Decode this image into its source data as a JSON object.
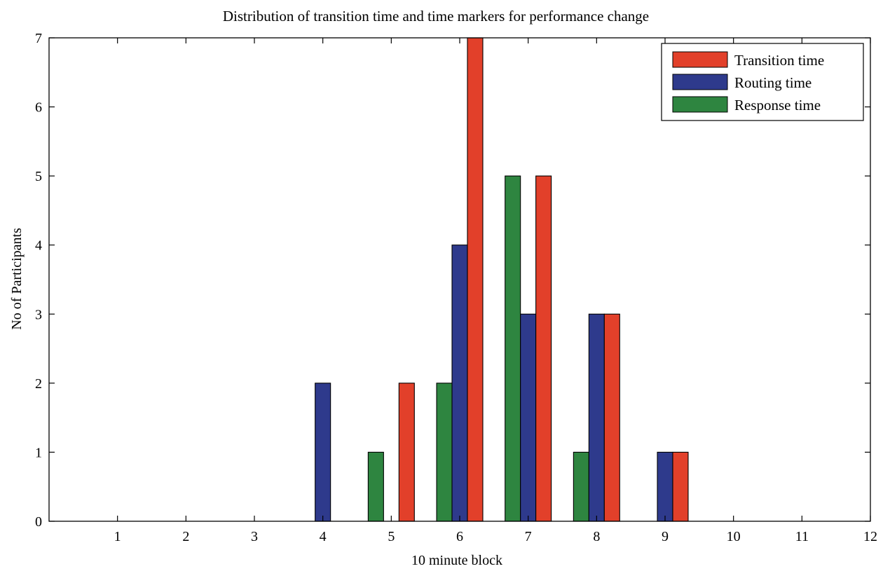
{
  "chart_data": {
    "type": "bar",
    "title": "Distribution of transition time and time markers for performance change",
    "xlabel": "10 minute block",
    "ylabel": "No of Participants",
    "xlim": [
      0,
      12
    ],
    "ylim": [
      0,
      7
    ],
    "xticks": [
      1,
      2,
      3,
      4,
      5,
      6,
      7,
      8,
      9,
      10,
      11,
      12
    ],
    "yticks": [
      0,
      1,
      2,
      3,
      4,
      5,
      6,
      7
    ],
    "categories": [
      4,
      5,
      6,
      7,
      8,
      9
    ],
    "series": [
      {
        "name": "Response time",
        "color": "#2e8540",
        "values": [
          0,
          1,
          2,
          5,
          1,
          0
        ]
      },
      {
        "name": "Routing time",
        "color": "#2e3a8c",
        "values": [
          2,
          0,
          4,
          3,
          3,
          1
        ]
      },
      {
        "name": "Transition time",
        "color": "#e2402a",
        "values": [
          0,
          2,
          7,
          5,
          3,
          1
        ]
      }
    ],
    "legend_order": [
      "Transition time",
      "Routing time",
      "Response time"
    ],
    "legend_position": "top-right",
    "grid": false
  }
}
